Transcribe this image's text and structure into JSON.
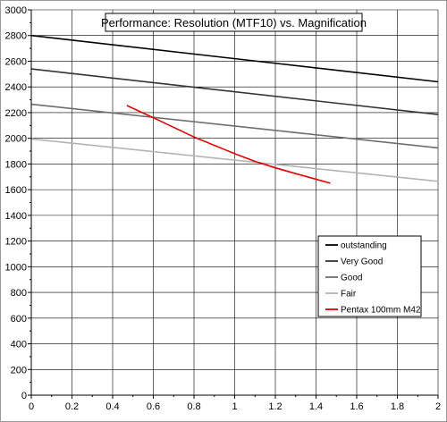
{
  "chart_data": {
    "type": "line",
    "title": "Performance: Resolution (MTF10) vs. Magnification",
    "xlabel": "",
    "ylabel": "",
    "xlim": [
      0,
      2
    ],
    "ylim": [
      0,
      3000
    ],
    "x_ticks": [
      "0",
      "0.2",
      "0.4",
      "0.6",
      "0.8",
      "1",
      "1.2",
      "1.4",
      "1.6",
      "1.8",
      "2"
    ],
    "y_ticks": [
      "0",
      "200",
      "400",
      "600",
      "800",
      "1000",
      "1200",
      "1400",
      "1600",
      "1800",
      "2000",
      "2200",
      "2400",
      "2600",
      "2800",
      "3000"
    ],
    "grid": true,
    "legend_position": "lower-right",
    "series": [
      {
        "name": "outstanding",
        "color": "#000000",
        "x": [
          0,
          2
        ],
        "y": [
          2800,
          2440
        ]
      },
      {
        "name": "Very Good",
        "color": "#333333",
        "x": [
          0,
          2
        ],
        "y": [
          2540,
          2185
        ]
      },
      {
        "name": "Good",
        "color": "#6e6e6e",
        "x": [
          0,
          2
        ],
        "y": [
          2265,
          1925
        ]
      },
      {
        "name": "Fair",
        "color": "#b4b4b4",
        "x": [
          0,
          2
        ],
        "y": [
          1995,
          1665
        ]
      },
      {
        "name": "Pentax 100mm M42",
        "color": "#e00000",
        "x": [
          0.47,
          0.6,
          0.8,
          1.0,
          1.1,
          1.2,
          1.3,
          1.47
        ],
        "y": [
          2255,
          2160,
          2010,
          1880,
          1820,
          1770,
          1725,
          1650
        ]
      }
    ]
  }
}
